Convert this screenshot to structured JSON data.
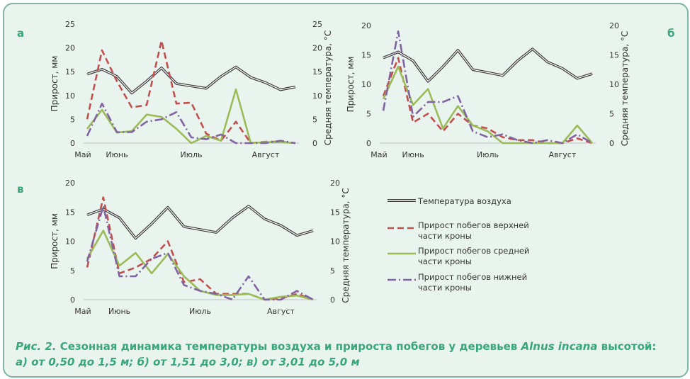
{
  "colors": {
    "temp": "#3a3a3a",
    "upper": "#c0504d",
    "middle": "#9bbb59",
    "lower": "#8064a2",
    "panel_label": "#3aa67c",
    "axis_text": "#333333"
  },
  "months": [
    "Май",
    "Июнь",
    "Июль",
    "Август"
  ],
  "legend": {
    "temp": "Температура воздуха",
    "upper": [
      "Прирост побегов верхней",
      "части кроны"
    ],
    "middle": [
      "Прирост побегов средней",
      "части кроны"
    ],
    "lower": [
      "Прирост побегов нижней",
      "части кроны"
    ]
  },
  "caption": {
    "fig": "Рис. 2.",
    "text": "Сезонная динамика температуры воздуха и прироста побегов у деревьев",
    "species": "Alnus incana",
    "tail": "высотой:",
    "line2": "а) от 0,50 до 1,5 м; б) от 1,51 до 3,0; в) от 3,01 до 5,0 м"
  },
  "chart_data": [
    {
      "type": "line",
      "panel": "а",
      "ylabel_left": "Прирост, мм",
      "ylabel_right": "Средняя температура, °С",
      "ylim": [
        0,
        25
      ],
      "yticks": [
        0,
        5,
        10,
        15,
        20,
        25
      ],
      "x_labels": [
        "Май",
        "Июнь",
        "Июль",
        "Август"
      ],
      "x_label_at": [
        0,
        2,
        7,
        12
      ],
      "series": [
        {
          "name": "Температура воздуха",
          "values": [
            14.5,
            15.5,
            14,
            10.5,
            13,
            15.8,
            12.5,
            12,
            11.5,
            14,
            16,
            13.8,
            12.7,
            11.2,
            11.8
          ]
        },
        {
          "name": "Прирост побегов верхней части кроны",
          "values": [
            5,
            19.5,
            13,
            7.5,
            8,
            21.5,
            8.3,
            8.5,
            2,
            0.5,
            4.5,
            0,
            0.3,
            0.3,
            0
          ]
        },
        {
          "name": "Прирост побегов средней части кроны",
          "values": [
            3,
            7,
            2.2,
            2.5,
            6,
            5.5,
            3,
            0,
            1.5,
            0.5,
            11.3,
            0,
            0.2,
            0.2,
            0
          ]
        },
        {
          "name": "Прирост побегов нижней части кроны",
          "values": [
            1.5,
            8.3,
            2.3,
            2.3,
            4.5,
            5,
            6.5,
            1.2,
            0.8,
            1.8,
            0,
            0,
            0,
            0.5,
            0
          ]
        }
      ]
    },
    {
      "type": "line",
      "panel": "б",
      "ylabel_left": "Прирост, мм",
      "ylabel_right": "Средняя температура, °С",
      "ylim": [
        0,
        20
      ],
      "yticks": [
        0,
        5,
        10,
        15,
        20
      ],
      "x_labels": [
        "Май",
        "Июнь",
        "Июль",
        "Август"
      ],
      "x_label_at": [
        0,
        2,
        7,
        12
      ],
      "series": [
        {
          "name": "Температура воздуха",
          "values": [
            14.5,
            15.5,
            14,
            10.5,
            13,
            15.8,
            12.5,
            12,
            11.5,
            14,
            16,
            13.8,
            12.7,
            11,
            11.8
          ]
        },
        {
          "name": "Прирост побегов верхней части кроны",
          "values": [
            8,
            14.5,
            3.5,
            5,
            2,
            5,
            3,
            2.5,
            1,
            0.5,
            0.5,
            0,
            0,
            0.8,
            0
          ]
        },
        {
          "name": "Прирост побегов средней части кроны",
          "values": [
            7.5,
            13,
            6.5,
            9.2,
            2.5,
            6.3,
            3,
            2,
            0,
            0,
            0,
            0,
            0,
            3,
            0
          ]
        },
        {
          "name": "Прирост побегов нижней части кроны",
          "values": [
            5.5,
            19,
            4.5,
            7,
            7,
            8,
            2,
            1,
            1.5,
            0.5,
            0,
            0.5,
            0,
            1.5,
            0
          ]
        }
      ]
    },
    {
      "type": "line",
      "panel": "в",
      "ylabel_left": "Прирост, мм",
      "ylabel_right": "Средняя температура, °С",
      "ylim": [
        0,
        20
      ],
      "yticks": [
        0,
        5,
        10,
        15,
        20
      ],
      "x_labels": [
        "Май",
        "Июнь",
        "Июль",
        "Август"
      ],
      "x_label_at": [
        0,
        2,
        7,
        12
      ],
      "series": [
        {
          "name": "Температура воздуха",
          "values": [
            14.5,
            15.5,
            14,
            10.5,
            13,
            15.8,
            12.5,
            12,
            11.5,
            14,
            16,
            13.8,
            12.7,
            11,
            11.8
          ]
        },
        {
          "name": "Прирост побегов верхней части кроны",
          "values": [
            5.5,
            17.5,
            4.5,
            5.5,
            7,
            10,
            3,
            3.5,
            1,
            1,
            1,
            0,
            0.2,
            1,
            0
          ]
        },
        {
          "name": "Прирост побегов средней части кроны",
          "values": [
            7,
            11.8,
            5.8,
            8,
            4.5,
            7.8,
            4,
            1.5,
            0.8,
            0.8,
            1,
            0,
            0.5,
            0.7,
            0
          ]
        },
        {
          "name": "Прирост побегов нижней части кроны",
          "values": [
            6.5,
            16,
            4,
            4,
            7,
            8,
            2.5,
            1.5,
            1,
            0,
            4,
            0,
            0,
            1.5,
            0
          ]
        }
      ]
    }
  ]
}
